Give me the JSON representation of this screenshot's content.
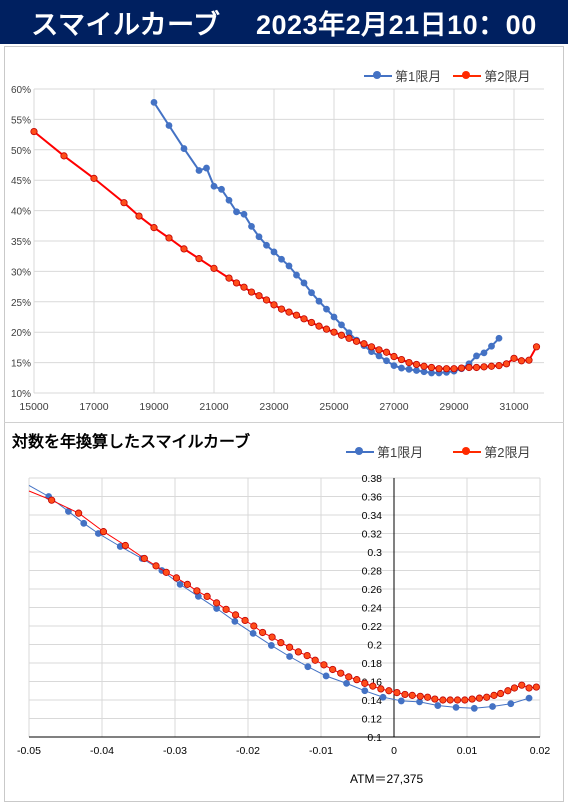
{
  "header": {
    "title": "スマイルカーブ　 2023年2月21日10：00"
  },
  "legend": {
    "series1": "第1限月",
    "series2": "第2限月"
  },
  "colors": {
    "banner": "#002060",
    "series1": "#4472c4",
    "series2_line": "#ff0000",
    "series2_marker": "#ff4d1a"
  },
  "chart2_title": "対数を年換算したスマイルカーブ",
  "atm_label": "ATM＝27,375",
  "chart_data": [
    {
      "type": "line",
      "title": "",
      "xlabel": "",
      "ylabel": "",
      "xlim": [
        15000,
        32000
      ],
      "ylim": [
        0.1,
        0.6
      ],
      "x_ticks": [
        15000,
        17000,
        19000,
        21000,
        23000,
        25000,
        27000,
        29000,
        31000
      ],
      "y_ticks": [
        "10%",
        "15%",
        "20%",
        "25%",
        "30%",
        "35%",
        "40%",
        "45%",
        "50%",
        "55%",
        "60%"
      ],
      "grid": true,
      "legend_position": "top-right",
      "series": [
        {
          "name": "第1限月",
          "x": [
            19000,
            19500,
            20000,
            20500,
            20750,
            21000,
            21250,
            21500,
            21750,
            22000,
            22250,
            22500,
            22750,
            23000,
            23250,
            23500,
            23750,
            24000,
            24250,
            24500,
            24750,
            25000,
            25250,
            25500,
            25750,
            26000,
            26250,
            26500,
            26750,
            27000,
            27250,
            27500,
            27750,
            28000,
            28250,
            28500,
            28750,
            29000,
            29250,
            29500,
            29750,
            30000,
            30250,
            30500
          ],
          "y": [
            0.578,
            0.54,
            0.502,
            0.466,
            0.47,
            0.44,
            0.435,
            0.417,
            0.398,
            0.394,
            0.374,
            0.357,
            0.343,
            0.332,
            0.32,
            0.309,
            0.294,
            0.281,
            0.265,
            0.251,
            0.238,
            0.225,
            0.212,
            0.199,
            0.187,
            0.178,
            0.168,
            0.161,
            0.153,
            0.145,
            0.141,
            0.139,
            0.137,
            0.135,
            0.133,
            0.133,
            0.134,
            0.136,
            0.14,
            0.148,
            0.161,
            0.166,
            0.177,
            0.19
          ]
        },
        {
          "name": "第2限月",
          "x": [
            15000,
            16000,
            17000,
            18000,
            18500,
            19000,
            19500,
            20000,
            20500,
            21000,
            21500,
            21750,
            22000,
            22250,
            22500,
            22750,
            23000,
            23250,
            23500,
            23750,
            24000,
            24250,
            24500,
            24750,
            25000,
            25250,
            25500,
            25750,
            26000,
            26250,
            26500,
            26750,
            27000,
            27250,
            27500,
            27750,
            28000,
            28250,
            28500,
            28750,
            29000,
            29250,
            29500,
            29750,
            30000,
            30250,
            30500,
            30750,
            31000,
            31250,
            31500,
            31750
          ],
          "y": [
            0.53,
            0.49,
            0.453,
            0.413,
            0.391,
            0.372,
            0.355,
            0.337,
            0.321,
            0.305,
            0.289,
            0.281,
            0.274,
            0.266,
            0.26,
            0.253,
            0.245,
            0.238,
            0.233,
            0.228,
            0.222,
            0.216,
            0.21,
            0.205,
            0.2,
            0.195,
            0.19,
            0.185,
            0.181,
            0.176,
            0.171,
            0.167,
            0.16,
            0.155,
            0.15,
            0.147,
            0.144,
            0.142,
            0.14,
            0.14,
            0.14,
            0.141,
            0.142,
            0.142,
            0.143,
            0.144,
            0.145,
            0.148,
            0.157,
            0.153,
            0.154,
            0.176
          ]
        }
      ]
    },
    {
      "type": "line",
      "title": "対数を年換算したスマイルカーブ",
      "xlabel": "",
      "ylabel": "",
      "xlim": [
        -0.05,
        0.02
      ],
      "ylim": [
        0.1,
        0.38
      ],
      "x_ticks": [
        "-0.05",
        "-0.04",
        "-0.03",
        "-0.02",
        "-0.01",
        "0",
        "0.01",
        "0.02"
      ],
      "y_ticks": [
        "0.1",
        "0.12",
        "0.14",
        "0.16",
        "0.18",
        "0.2",
        "0.22",
        "0.24",
        "0.26",
        "0.28",
        "0.3",
        "0.32",
        "0.34",
        "0.36",
        "0.38"
      ],
      "grid": true,
      "legend_position": "top-right",
      "series": [
        {
          "name": "第1限月",
          "x": [
            -0.0473,
            -0.0446,
            -0.0425,
            -0.0405,
            -0.0375,
            -0.0345,
            -0.0318,
            -0.0293,
            -0.0268,
            -0.0243,
            -0.0218,
            -0.0193,
            -0.0168,
            -0.0143,
            -0.0118,
            -0.0093,
            -0.0065,
            -0.004,
            -0.0015,
            0.001,
            0.0035,
            0.006,
            0.0085,
            0.011,
            0.0135,
            0.016,
            0.0185
          ],
          "y": [
            0.36,
            0.344,
            0.331,
            0.32,
            0.306,
            0.293,
            0.28,
            0.265,
            0.252,
            0.239,
            0.225,
            0.212,
            0.199,
            0.187,
            0.176,
            0.166,
            0.158,
            0.15,
            0.143,
            0.139,
            0.138,
            0.134,
            0.132,
            0.131,
            0.133,
            0.136,
            0.142
          ]
        },
        {
          "name": "第2限月",
          "x": [
            -0.0469,
            -0.0432,
            -0.0398,
            -0.0368,
            -0.0342,
            -0.0326,
            -0.0312,
            -0.0298,
            -0.0283,
            -0.027,
            -0.0256,
            -0.0243,
            -0.023,
            -0.0217,
            -0.0204,
            -0.0192,
            -0.018,
            -0.0167,
            -0.0155,
            -0.0143,
            -0.0131,
            -0.0119,
            -0.0108,
            -0.0096,
            -0.0084,
            -0.0073,
            -0.0062,
            -0.0051,
            -0.004,
            -0.0029,
            -0.0018,
            -0.0007,
            0.0004,
            0.0015,
            0.0025,
            0.0036,
            0.0046,
            0.0056,
            0.0067,
            0.0077,
            0.0087,
            0.0097,
            0.0107,
            0.0117,
            0.0127,
            0.0137,
            0.0146,
            0.0156,
            0.0165,
            0.0175,
            0.0185,
            0.0195
          ],
          "y": [
            0.356,
            0.342,
            0.322,
            0.307,
            0.293,
            0.285,
            0.278,
            0.272,
            0.265,
            0.258,
            0.252,
            0.245,
            0.238,
            0.232,
            0.226,
            0.22,
            0.213,
            0.208,
            0.202,
            0.197,
            0.192,
            0.188,
            0.183,
            0.178,
            0.173,
            0.169,
            0.165,
            0.162,
            0.158,
            0.155,
            0.152,
            0.15,
            0.148,
            0.146,
            0.145,
            0.144,
            0.143,
            0.141,
            0.14,
            0.14,
            0.14,
            0.14,
            0.141,
            0.142,
            0.143,
            0.145,
            0.147,
            0.15,
            0.153,
            0.156,
            0.153,
            0.154
          ]
        }
      ]
    }
  ]
}
